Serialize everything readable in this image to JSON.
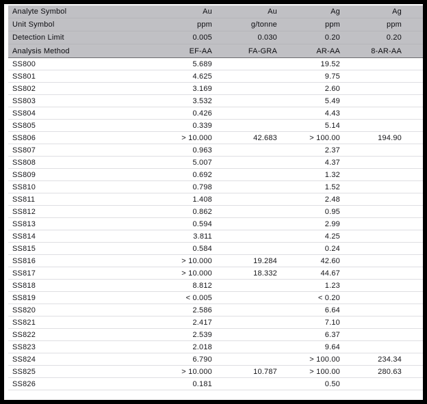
{
  "report": {
    "header_rows": [
      {
        "label": "Analyte Symbol",
        "values": [
          "Au",
          "Au",
          "Ag",
          "Ag"
        ]
      },
      {
        "label": "Unit Symbol",
        "values": [
          "ppm",
          "g/tonne",
          "ppm",
          "ppm"
        ]
      },
      {
        "label": "Detection Limit",
        "values": [
          "0.005",
          "0.030",
          "0.20",
          "0.20"
        ]
      },
      {
        "label": "Analysis Method",
        "values": [
          "EF-AA",
          "FA-GRA",
          "AR-AA",
          "8-AR-AA"
        ]
      }
    ],
    "rows": [
      {
        "sample": "SS800",
        "values": [
          "5.689",
          "",
          "19.52",
          ""
        ]
      },
      {
        "sample": "SS801",
        "values": [
          "4.625",
          "",
          "9.75",
          ""
        ]
      },
      {
        "sample": "SS802",
        "values": [
          "3.169",
          "",
          "2.60",
          ""
        ]
      },
      {
        "sample": "SS803",
        "values": [
          "3.532",
          "",
          "5.49",
          ""
        ]
      },
      {
        "sample": "SS804",
        "values": [
          "0.426",
          "",
          "4.43",
          ""
        ]
      },
      {
        "sample": "SS805",
        "values": [
          "0.339",
          "",
          "5.14",
          ""
        ]
      },
      {
        "sample": "SS806",
        "values": [
          "> 10.000",
          "42.683",
          "> 100.00",
          "194.90"
        ]
      },
      {
        "sample": "SS807",
        "values": [
          "0.963",
          "",
          "2.37",
          ""
        ]
      },
      {
        "sample": "SS808",
        "values": [
          "5.007",
          "",
          "4.37",
          ""
        ]
      },
      {
        "sample": "SS809",
        "values": [
          "0.692",
          "",
          "1.32",
          ""
        ]
      },
      {
        "sample": "SS810",
        "values": [
          "0.798",
          "",
          "1.52",
          ""
        ]
      },
      {
        "sample": "SS811",
        "values": [
          "1.408",
          "",
          "2.48",
          ""
        ]
      },
      {
        "sample": "SS812",
        "values": [
          "0.862",
          "",
          "0.95",
          ""
        ]
      },
      {
        "sample": "SS813",
        "values": [
          "0.594",
          "",
          "2.99",
          ""
        ]
      },
      {
        "sample": "SS814",
        "values": [
          "3.811",
          "",
          "4.25",
          ""
        ]
      },
      {
        "sample": "SS815",
        "values": [
          "0.584",
          "",
          "0.24",
          ""
        ]
      },
      {
        "sample": "SS816",
        "values": [
          "> 10.000",
          "19.284",
          "42.60",
          ""
        ]
      },
      {
        "sample": "SS817",
        "values": [
          "> 10.000",
          "18.332",
          "44.67",
          ""
        ]
      },
      {
        "sample": "SS818",
        "values": [
          "8.812",
          "",
          "1.23",
          ""
        ]
      },
      {
        "sample": "SS819",
        "values": [
          "< 0.005",
          "",
          "< 0.20",
          ""
        ]
      },
      {
        "sample": "SS820",
        "values": [
          "2.586",
          "",
          "6.64",
          ""
        ]
      },
      {
        "sample": "SS821",
        "values": [
          "2.417",
          "",
          "7.10",
          ""
        ]
      },
      {
        "sample": "SS822",
        "values": [
          "2.539",
          "",
          "6.37",
          ""
        ]
      },
      {
        "sample": "SS823",
        "values": [
          "2.018",
          "",
          "9.64",
          ""
        ]
      },
      {
        "sample": "SS824",
        "values": [
          "6.790",
          "",
          "> 100.00",
          "234.34"
        ]
      },
      {
        "sample": "SS825",
        "values": [
          "> 10.000",
          "10.787",
          "> 100.00",
          "280.63"
        ]
      },
      {
        "sample": "SS826",
        "values": [
          "0.181",
          "",
          "0.50",
          ""
        ]
      }
    ]
  },
  "colors": {
    "frame_border": "#000000",
    "header_bg": "#c0c0c4",
    "header_separator": "#6b6b70",
    "row_line": "#dedee2",
    "text": "#141418"
  }
}
